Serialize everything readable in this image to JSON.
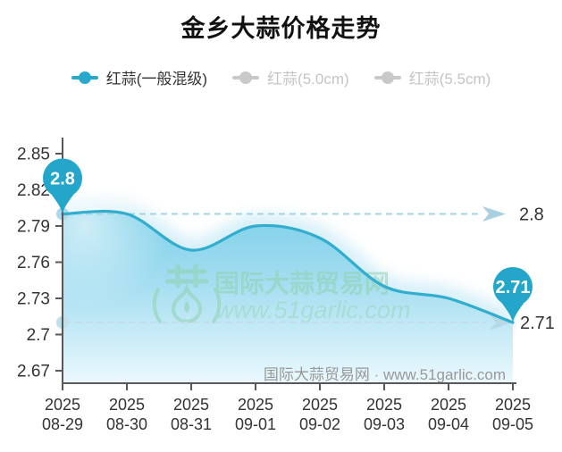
{
  "title": "金乡大蒜价格走势",
  "legend": {
    "items": [
      {
        "label": "红蒜(一般混级)",
        "active": true
      },
      {
        "label": "红蒜(5.0cm)",
        "active": false
      },
      {
        "label": "红蒜(5.5cm)",
        "active": false
      }
    ]
  },
  "chart_data": {
    "type": "line",
    "title": "金乡大蒜价格走势",
    "smooth": true,
    "grid": false,
    "legend_position": "top",
    "categories": [
      "2025-08-29",
      "2025-08-30",
      "2025-08-31",
      "2025-09-01",
      "2025-09-02",
      "2025-09-03",
      "2025-09-04",
      "2025-09-05"
    ],
    "series": [
      {
        "name": "红蒜(一般混级)",
        "values": [
          2.8,
          2.8,
          2.77,
          2.79,
          2.78,
          2.74,
          2.73,
          2.71
        ]
      }
    ],
    "y_ticks": [
      2.67,
      2.7,
      2.73,
      2.76,
      2.79,
      2.82,
      2.85
    ],
    "ylim": [
      2.655,
      2.863
    ],
    "start_marker": {
      "label": "2.8",
      "index": 0
    },
    "end_marker": {
      "label": "2.71",
      "index": 7
    },
    "reference_lines": [
      {
        "value": 2.8,
        "label": "2.8"
      },
      {
        "value": 2.71,
        "label": "2.71"
      }
    ]
  },
  "watermark": {
    "logo": "garlic-logo",
    "line1": "国际大蒜贸易网",
    "line2": "www.51garlic.com"
  },
  "footnote": "国际大蒜贸易网 · www.51garlic.com",
  "colors": {
    "accent": "#29a8cc",
    "legend_inactive": "#c9c9c9",
    "line": "#30adcf",
    "pin": "#24a6ca",
    "axis": "#58585a",
    "tick_text": "#333333",
    "dashed_1": "#a6d3e2",
    "dashed_2": "#c2dde7",
    "arrow_1": "#9ecbdd",
    "arrow_2": "#b4d7e3",
    "ref_dot_1": "#aed8e7",
    "ref_dot_2": "#bfdfeb",
    "area_top": "#7fd0e9",
    "area_mid": "#a0dcf0",
    "area_bottom": "#eaf8fd",
    "glow": "#d2edf7",
    "watermark": "#8fd2ae",
    "footnote_text": "#999999"
  }
}
